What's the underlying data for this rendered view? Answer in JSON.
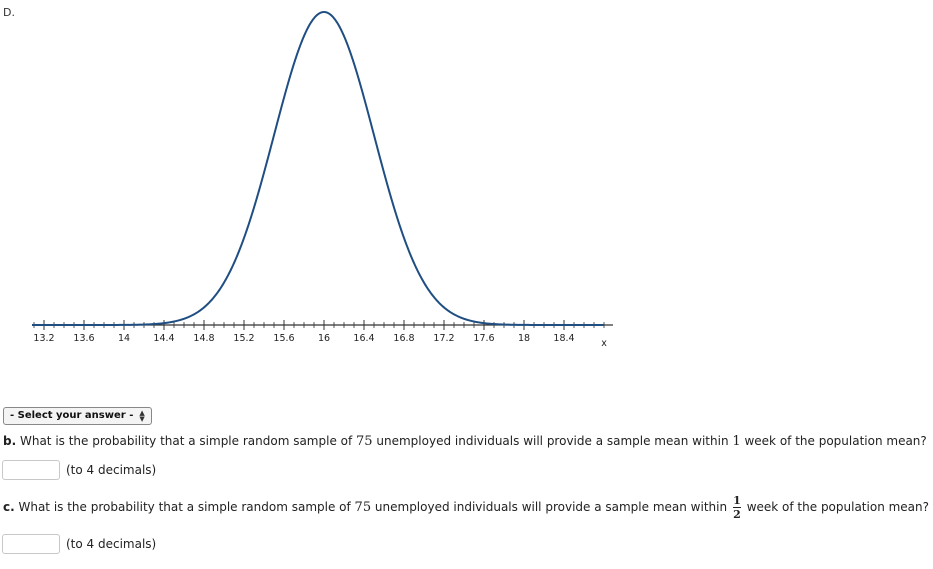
{
  "option": {
    "label": "D."
  },
  "chart_data": {
    "type": "line",
    "curve": "normal-distribution",
    "mean": 16,
    "xlim": [
      13.2,
      18.8
    ],
    "tick_labels": [
      "13.2",
      "13.6",
      "14",
      "14.4",
      "14.8",
      "15.2",
      "15.6",
      "16",
      "16.4",
      "16.8",
      "17.2",
      "17.6",
      "18",
      "18.4"
    ],
    "tick_values": [
      13.2,
      13.6,
      14,
      14.4,
      14.8,
      15.2,
      15.6,
      16,
      16.4,
      16.8,
      17.2,
      17.6,
      18,
      18.4
    ],
    "minor_tick_step": 0.1,
    "xlabel": "x",
    "line_color": "#1f4e82"
  },
  "select": {
    "placeholder": "- Select your answer -"
  },
  "question_b": {
    "prefix": "b.",
    "text_before": " What is the probability that a simple random sample of ",
    "n": "75",
    "text_mid": " unemployed individuals will provide a sample mean within ",
    "within": "1",
    "text_after": " week of the population mean?"
  },
  "answer_b": {
    "note": "(to 4 decimals)"
  },
  "question_c": {
    "prefix": "c.",
    "text_before": " What is the probability that a simple random sample of ",
    "n": "75",
    "text_mid": " unemployed individuals will provide a sample mean within ",
    "frac_num": "1",
    "frac_den": "2",
    "text_after": " week of the population mean?"
  },
  "answer_c": {
    "note": "(to 4 decimals)"
  }
}
